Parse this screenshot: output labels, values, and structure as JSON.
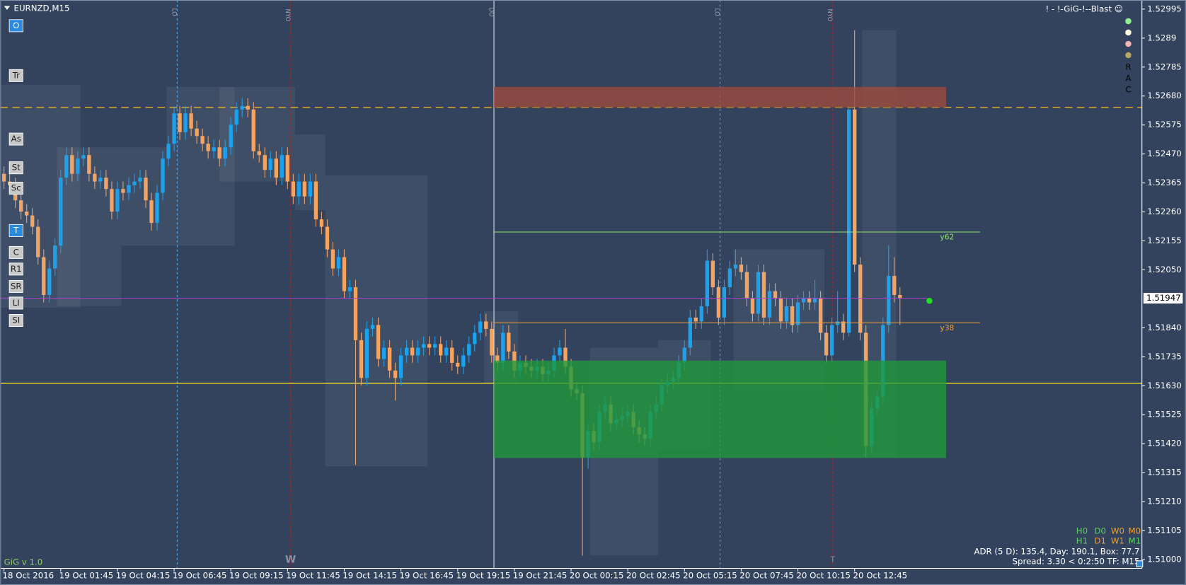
{
  "chart_data": {
    "type": "candlestick",
    "title": "EURNZD,M15",
    "subtitle": "! - !-GiG-!--Blast ☺",
    "footer": "GiG v 1.0",
    "bull_color": "#1ea0ea",
    "bear_color": "#f2a464",
    "ylim": [
      1.50968,
      1.53028
    ],
    "yticks": [
      1.52995,
      1.5289,
      1.52785,
      {
        "value": 1.5268,
        "label": "1.52680"
      },
      1.52575,
      {
        "value": 1.5247,
        "label": "1.52470"
      },
      1.52365,
      {
        "value": 1.5226,
        "label": "1.52260"
      },
      1.52155,
      {
        "value": 1.5205,
        "label": "1.52050"
      },
      {
        "value": 1.5184,
        "label": "1.51840"
      },
      1.51735,
      {
        "value": 1.5163,
        "label": "1.51630"
      },
      1.51525,
      {
        "value": 1.5142,
        "label": "1.51420"
      },
      1.51315,
      {
        "value": 1.5121,
        "label": "1.51210"
      },
      1.51105,
      {
        "value": 1.51,
        "label": "1.51000"
      }
    ],
    "last_price": 1.51947,
    "last_price_color": "#b040d0",
    "categories": [
      "18 Oct 2016",
      null,
      null,
      null,
      null,
      null,
      null,
      null,
      null,
      null,
      "19 Oct 01:45",
      null,
      null,
      null,
      null,
      null,
      null,
      null,
      null,
      null,
      "19 Oct 04:15",
      null,
      null,
      null,
      null,
      null,
      null,
      null,
      null,
      null,
      "19 Oct 06:45",
      null,
      null,
      null,
      null,
      null,
      null,
      null,
      null,
      null,
      "19 Oct 09:15",
      null,
      null,
      null,
      null,
      null,
      null,
      null,
      null,
      null,
      "19 Oct 11:45",
      null,
      null,
      null,
      null,
      null,
      null,
      null,
      null,
      null,
      "19 Oct 14:15",
      null,
      null,
      null,
      null,
      null,
      null,
      null,
      null,
      null,
      "19 Oct 16:45",
      null,
      null,
      null,
      null,
      null,
      null,
      null,
      null,
      null,
      "19 Oct 19:15",
      null,
      null,
      null,
      null,
      null,
      null,
      null,
      null,
      null,
      "19 Oct 21:45",
      null,
      null,
      null,
      null,
      null,
      null,
      null,
      null,
      null,
      "20 Oct 00:15",
      null,
      null,
      null,
      null,
      null,
      null,
      null,
      null,
      null,
      "20 Oct 02:45",
      null,
      null,
      null,
      null,
      null,
      null,
      null,
      null,
      null,
      "20 Oct 05:15",
      null,
      null,
      null,
      null,
      null,
      null,
      null,
      null,
      null,
      "20 Oct 07:45",
      null,
      null,
      null,
      null,
      null,
      null,
      null,
      null,
      null,
      "20 Oct 10:15",
      null,
      null,
      null,
      null,
      null,
      null,
      null,
      null,
      null,
      "20 Oct 12:45",
      null,
      null,
      null,
      null,
      null,
      null,
      null,
      null
    ],
    "candles": [
      [
        1.52398,
        1.52425,
        1.52343,
        1.5237
      ],
      [
        1.5237,
        1.52398,
        1.52329,
        1.52357
      ],
      [
        1.52357,
        1.52384,
        1.52274,
        1.52302
      ],
      [
        1.52302,
        1.52329,
        1.52233,
        1.52261
      ],
      [
        1.52261,
        1.52288,
        1.5222,
        1.52247
      ],
      [
        1.52247,
        1.52274,
        1.52179,
        1.52206
      ],
      [
        1.52206,
        1.52233,
        1.52069,
        1.52096
      ],
      [
        1.52096,
        1.52124,
        1.51932,
        1.51959
      ],
      [
        1.51959,
        1.52083,
        1.51932,
        1.52055
      ],
      [
        1.52055,
        1.52165,
        1.52028,
        1.52138
      ],
      [
        1.52138,
        1.52412,
        1.5211,
        1.52384
      ],
      [
        1.52384,
        1.52494,
        1.52357,
        1.52466
      ],
      [
        1.52466,
        1.52494,
        1.5237,
        1.52398
      ],
      [
        1.52398,
        1.5248,
        1.5237,
        1.52453
      ],
      [
        1.52453,
        1.52494,
        1.52425,
        1.52466
      ],
      [
        1.52466,
        1.52494,
        1.5237,
        1.52398
      ],
      [
        1.52398,
        1.52425,
        1.52343,
        1.5237
      ],
      [
        1.5237,
        1.52412,
        1.52343,
        1.52384
      ],
      [
        1.52384,
        1.52412,
        1.52316,
        1.52343
      ],
      [
        1.52343,
        1.5237,
        1.52233,
        1.52261
      ],
      [
        1.52261,
        1.5237,
        1.52233,
        1.52343
      ],
      [
        1.52343,
        1.5237,
        1.52302,
        1.52329
      ],
      [
        1.52329,
        1.52384,
        1.52302,
        1.52357
      ],
      [
        1.52357,
        1.52398,
        1.52329,
        1.5237
      ],
      [
        1.5237,
        1.52412,
        1.52343,
        1.52384
      ],
      [
        1.52384,
        1.52412,
        1.52274,
        1.52302
      ],
      [
        1.52302,
        1.52329,
        1.52192,
        1.5222
      ],
      [
        1.5222,
        1.52357,
        1.52192,
        1.52329
      ],
      [
        1.52329,
        1.5248,
        1.52302,
        1.52453
      ],
      [
        1.52453,
        1.52535,
        1.52425,
        1.52507
      ],
      [
        1.52507,
        1.52644,
        1.5248,
        1.52617
      ],
      [
        1.52617,
        1.52644,
        1.52521,
        1.52549
      ],
      [
        1.52549,
        1.52644,
        1.52521,
        1.52617
      ],
      [
        1.52617,
        1.52644,
        1.52535,
        1.52562
      ],
      [
        1.52562,
        1.5259,
        1.52507,
        1.52535
      ],
      [
        1.52535,
        1.52562,
        1.5248,
        1.52507
      ],
      [
        1.52507,
        1.52535,
        1.52453,
        1.5248
      ],
      [
        1.5248,
        1.52521,
        1.52453,
        1.52494
      ],
      [
        1.52494,
        1.52521,
        1.52425,
        1.52453
      ],
      [
        1.52453,
        1.52521,
        1.52425,
        1.52494
      ],
      [
        1.52494,
        1.52603,
        1.52466,
        1.52576
      ],
      [
        1.52576,
        1.52658,
        1.52549,
        1.52631
      ],
      [
        1.52631,
        1.52672,
        1.52603,
        1.52644
      ],
      [
        1.52644,
        1.52672,
        1.52603,
        1.52631
      ],
      [
        1.52631,
        1.52658,
        1.52453,
        1.5248
      ],
      [
        1.5248,
        1.52507,
        1.52439,
        1.52466
      ],
      [
        1.52466,
        1.52494,
        1.52384,
        1.52412
      ],
      [
        1.52412,
        1.5248,
        1.52384,
        1.52453
      ],
      [
        1.52453,
        1.5248,
        1.52357,
        1.52384
      ],
      [
        1.52384,
        1.52494,
        1.52357,
        1.52466
      ],
      [
        1.52466,
        1.52494,
        1.52343,
        1.5237
      ],
      [
        1.5237,
        1.52398,
        1.52288,
        1.52316
      ],
      [
        1.52316,
        1.52398,
        1.52288,
        1.5237
      ],
      [
        1.5237,
        1.52398,
        1.52288,
        1.52316
      ],
      [
        1.52316,
        1.52398,
        1.52288,
        1.5237
      ],
      [
        1.5237,
        1.52398,
        1.52206,
        1.52233
      ],
      [
        1.52233,
        1.52261,
        1.52179,
        1.52206
      ],
      [
        1.52206,
        1.52233,
        1.52096,
        1.52124
      ],
      [
        1.52124,
        1.52151,
        1.52028,
        1.52055
      ],
      [
        1.52055,
        1.52124,
        1.52028,
        1.52096
      ],
      [
        1.52096,
        1.52124,
        1.51946,
        1.51973
      ],
      [
        1.51973,
        1.52014,
        1.51946,
        1.51987
      ],
      [
        1.51987,
        1.52014,
        1.51343,
        1.51795
      ],
      [
        1.51795,
        1.51822,
        1.51631,
        1.51658
      ],
      [
        1.51658,
        1.51863,
        1.51631,
        1.51836
      ],
      [
        1.51836,
        1.51877,
        1.51809,
        1.5185
      ],
      [
        1.5185,
        1.51877,
        1.51699,
        1.51727
      ],
      [
        1.51727,
        1.51795,
        1.51699,
        1.51768
      ],
      [
        1.51768,
        1.51795,
        1.51658,
        1.51685
      ],
      [
        1.51685,
        1.51713,
        1.51576,
        1.51658
      ],
      [
        1.51658,
        1.51768,
        1.51631,
        1.5174
      ],
      [
        1.5174,
        1.51795,
        1.51713,
        1.51768
      ],
      [
        1.51768,
        1.51795,
        1.51713,
        1.5174
      ],
      [
        1.5174,
        1.51795,
        1.51713,
        1.51768
      ],
      [
        1.51768,
        1.51809,
        1.5174,
        1.51781
      ],
      [
        1.51781,
        1.51809,
        1.5174,
        1.51768
      ],
      [
        1.51768,
        1.51809,
        1.5174,
        1.51781
      ],
      [
        1.51781,
        1.51809,
        1.51713,
        1.5174
      ],
      [
        1.5174,
        1.51795,
        1.51713,
        1.51768
      ],
      [
        1.51768,
        1.51795,
        1.51685,
        1.51713
      ],
      [
        1.51713,
        1.5174,
        1.51672,
        1.51699
      ],
      [
        1.51699,
        1.51768,
        1.51672,
        1.5174
      ],
      [
        1.5174,
        1.51809,
        1.51713,
        1.51781
      ],
      [
        1.51781,
        1.5185,
        1.51754,
        1.51822
      ],
      [
        1.51822,
        1.51891,
        1.51795,
        1.51863
      ],
      [
        1.51863,
        1.51891,
        1.51809,
        1.51836
      ],
      [
        1.51836,
        1.51863,
        1.51713,
        1.5174
      ],
      [
        1.5174,
        1.51768,
        1.51685,
        1.51713
      ],
      [
        1.51713,
        1.5185,
        1.51685,
        1.51822
      ],
      [
        1.51822,
        1.5185,
        1.51727,
        1.51754
      ],
      [
        1.51754,
        1.51781,
        1.51658,
        1.51685
      ],
      [
        1.51685,
        1.5174,
        1.51658,
        1.51713
      ],
      [
        1.51713,
        1.5174,
        1.51672,
        1.51699
      ],
      [
        1.51699,
        1.51727,
        1.51658,
        1.51685
      ],
      [
        1.51685,
        1.51727,
        1.51658,
        1.51699
      ],
      [
        1.51699,
        1.51727,
        1.51644,
        1.51672
      ],
      [
        1.51672,
        1.51713,
        1.51644,
        1.51685
      ],
      [
        1.51685,
        1.51768,
        1.51658,
        1.5174
      ],
      [
        1.5174,
        1.51795,
        1.51713,
        1.51768
      ],
      [
        1.51768,
        1.51836,
        1.51672,
        1.51699
      ],
      [
        1.51699,
        1.51727,
        1.5159,
        1.51617
      ],
      [
        1.51617,
        1.51644,
        1.51576,
        1.51603
      ],
      [
        1.51603,
        1.51631,
        1.51014,
        1.5137
      ],
      [
        1.5137,
        1.51494,
        1.51329,
        1.51466
      ],
      [
        1.51466,
        1.51494,
        1.51398,
        1.51425
      ],
      [
        1.51425,
        1.51562,
        1.51398,
        1.51535
      ],
      [
        1.51535,
        1.5159,
        1.51507,
        1.51562
      ],
      [
        1.51562,
        1.5159,
        1.51466,
        1.51494
      ],
      [
        1.51494,
        1.51535,
        1.51466,
        1.51507
      ],
      [
        1.51507,
        1.51548,
        1.5148,
        1.51521
      ],
      [
        1.51521,
        1.51562,
        1.51494,
        1.51535
      ],
      [
        1.51535,
        1.51562,
        1.51453,
        1.5148
      ],
      [
        1.5148,
        1.51507,
        1.51425,
        1.51453
      ],
      [
        1.51453,
        1.5148,
        1.51411,
        1.51439
      ],
      [
        1.51439,
        1.51562,
        1.51411,
        1.51535
      ],
      [
        1.51535,
        1.5159,
        1.51507,
        1.51562
      ],
      [
        1.51562,
        1.51658,
        1.51535,
        1.51631
      ],
      [
        1.51631,
        1.51672,
        1.51603,
        1.51644
      ],
      [
        1.51644,
        1.51685,
        1.51617,
        1.51658
      ],
      [
        1.51658,
        1.5174,
        1.51631,
        1.51713
      ],
      [
        1.51713,
        1.51795,
        1.51685,
        1.51768
      ],
      [
        1.51768,
        1.51905,
        1.5174,
        1.51877
      ],
      [
        1.51877,
        1.51905,
        1.51836,
        1.51863
      ],
      [
        1.51863,
        1.51946,
        1.51836,
        1.51918
      ],
      [
        1.51918,
        1.52124,
        1.51891,
        1.52083
      ],
      [
        1.52083,
        1.5211,
        1.51959,
        1.51987
      ],
      [
        1.51987,
        1.52014,
        1.5185,
        1.51877
      ],
      [
        1.51877,
        1.52014,
        1.5185,
        1.51987
      ],
      [
        1.51987,
        1.52083,
        1.51959,
        1.52055
      ],
      [
        1.52055,
        1.52124,
        1.52028,
        1.52069
      ],
      [
        1.52069,
        1.52096,
        1.52014,
        1.52042
      ],
      [
        1.52042,
        1.52069,
        1.51918,
        1.51946
      ],
      [
        1.51946,
        1.51973,
        1.51863,
        1.51891
      ],
      [
        1.51891,
        1.52069,
        1.51863,
        1.52042
      ],
      [
        1.52042,
        1.52069,
        1.5185,
        1.51877
      ],
      [
        1.51877,
        1.52001,
        1.5185,
        1.51973
      ],
      [
        1.51973,
        1.52001,
        1.51918,
        1.51946
      ],
      [
        1.51946,
        1.51973,
        1.51836,
        1.51863
      ],
      [
        1.51863,
        1.51946,
        1.51836,
        1.51918
      ],
      [
        1.51918,
        1.51946,
        1.51822,
        1.5185
      ],
      [
        1.5185,
        1.51959,
        1.51822,
        1.51932
      ],
      [
        1.51932,
        1.51973,
        1.51905,
        1.51946
      ],
      [
        1.51946,
        1.51973,
        1.51905,
        1.51932
      ],
      [
        1.51932,
        1.52014,
        1.51905,
        1.51946
      ],
      [
        1.51946,
        1.51973,
        1.51795,
        1.51822
      ],
      [
        1.51822,
        1.5185,
        1.51713,
        1.5174
      ],
      [
        1.5174,
        1.51877,
        1.51713,
        1.5185
      ],
      [
        1.5185,
        1.51973,
        1.51822,
        1.51863
      ],
      [
        1.51863,
        1.51891,
        1.51795,
        1.51822
      ],
      [
        1.51822,
        1.52644,
        1.51809,
        1.52631
      ],
      [
        1.52631,
        1.52918,
        1.52042,
        1.52069
      ],
      [
        1.52069,
        1.52096,
        1.51795,
        1.51822
      ],
      [
        1.51822,
        1.5185,
        1.5137,
        1.51411
      ],
      [
        1.51411,
        1.51576,
        1.51384,
        1.51548
      ],
      [
        1.51548,
        1.51617,
        1.51521,
        1.5159
      ],
      [
        1.5159,
        1.51877,
        1.51562,
        1.5185
      ],
      [
        1.5185,
        1.52138,
        1.51822,
        1.52028
      ],
      [
        1.52028,
        1.52096,
        1.51932,
        1.51959
      ],
      [
        1.51959,
        1.51987,
        1.5185,
        1.51947
      ]
    ],
    "zones": [
      {
        "from": 1.52639,
        "to": 1.52713,
        "color": "#a04a3c"
      },
      {
        "from": 1.51368,
        "to": 1.51721,
        "color": "#1f9a3a"
      }
    ],
    "lines": [
      {
        "value": 1.52639,
        "color": "#e8b020",
        "dashed": true
      },
      {
        "value": 1.51639,
        "color": "#f0e020",
        "dashed": false
      }
    ],
    "levels": [
      {
        "name": "y62",
        "value": 1.52187,
        "color": "#90e070"
      },
      {
        "name": "y38",
        "value": 1.51858,
        "color": "#f0a030"
      }
    ],
    "sessions": [
      "LO",
      "NYO",
      "DO",
      "LO",
      "NYO"
    ],
    "week_marks": [
      "W",
      "T"
    ],
    "indicator_letters": [
      "R",
      "A",
      "C"
    ],
    "buttons": [
      "O",
      "Tr",
      "As",
      "St",
      "Sc",
      "T",
      "C",
      "R1",
      "SR",
      "LI",
      "SI"
    ],
    "status_row1": [
      "H0",
      "D0",
      "W0",
      "M0"
    ],
    "status_row2": [
      "H1",
      "D1",
      "W1",
      "M1"
    ],
    "adr": "ADR (5 D): 135.4, Day: 190.1, Box: 77.7",
    "spread": "Spread: 3.30  <  0:2:50  TF: M15"
  }
}
